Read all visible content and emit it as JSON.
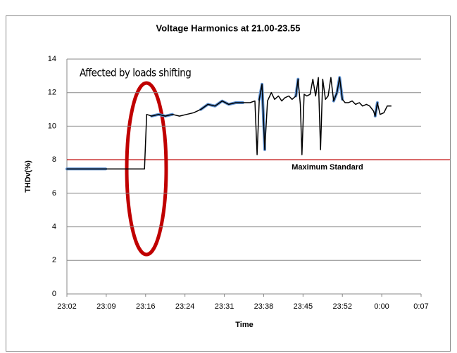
{
  "chart_data": {
    "type": "line",
    "title": "Voltage Harmonics at 21.00-23.55",
    "xlabel": "Time",
    "ylabel": "THDv(%)",
    "annotation": "Affected by loads shifting",
    "annotation_color": "#c00000",
    "reference_line": {
      "value": 8,
      "label": "Maximum Standard",
      "color": "#c00000"
    },
    "xlim": [
      1382.4,
      1447.2
    ],
    "xticks": [
      {
        "value": 1382.4,
        "label": "23:02"
      },
      {
        "value": 1389.6,
        "label": "23:09"
      },
      {
        "value": 1396.8,
        "label": "23:16"
      },
      {
        "value": 1404.0,
        "label": "23:24"
      },
      {
        "value": 1411.2,
        "label": "23:31"
      },
      {
        "value": 1418.4,
        "label": "23:38"
      },
      {
        "value": 1425.6,
        "label": "23:45"
      },
      {
        "value": 1432.8,
        "label": "23:52"
      },
      {
        "value": 1440.0,
        "label": "0:00"
      },
      {
        "value": 1447.2,
        "label": "0:07"
      }
    ],
    "ylim": [
      0,
      14
    ],
    "yticks": [
      0,
      2,
      4,
      6,
      8,
      10,
      12,
      14
    ],
    "grid": true,
    "x": [
      1382.4,
      1389.5,
      1396.6,
      1397.0,
      1397.9,
      1399.2,
      1400.4,
      1401.7,
      1403.0,
      1404.3,
      1405.6,
      1406.9,
      1408.2,
      1409.5,
      1410.8,
      1412.0,
      1413.3,
      1414.6,
      1415.9,
      1416.8,
      1417.2,
      1417.6,
      1418.1,
      1418.6,
      1419.1,
      1419.8,
      1420.4,
      1421.1,
      1421.7,
      1422.3,
      1423.0,
      1423.6,
      1424.3,
      1424.7,
      1425.1,
      1425.4,
      1425.8,
      1426.3,
      1426.9,
      1427.4,
      1427.9,
      1428.4,
      1428.8,
      1429.2,
      1429.7,
      1430.2,
      1430.7,
      1431.2,
      1431.8,
      1432.3,
      1432.8,
      1433.3,
      1433.9,
      1434.6,
      1435.2,
      1435.9,
      1436.5,
      1437.2,
      1437.8,
      1438.5,
      1438.8,
      1439.2,
      1439.7,
      1440.4,
      1441.0,
      1441.7
    ],
    "series": [
      {
        "color": "#5b8fd0",
        "width": 4,
        "values": [
          7.45,
          7.45,
          null,
          null,
          10.6,
          10.7,
          10.6,
          10.7,
          null,
          null,
          null,
          11.0,
          11.3,
          11.2,
          11.5,
          11.3,
          11.4,
          11.4,
          null,
          null,
          null,
          11.6,
          12.5,
          8.6,
          null,
          null,
          null,
          null,
          null,
          null,
          null,
          null,
          11.8,
          12.8,
          null,
          null,
          null,
          null,
          null,
          null,
          null,
          null,
          null,
          null,
          null,
          null,
          null,
          11.5,
          12.0,
          12.9,
          11.6,
          null,
          null,
          null,
          null,
          null,
          null,
          null,
          null,
          null,
          10.6,
          11.4,
          null,
          null,
          null,
          null
        ]
      },
      {
        "color": "#000000",
        "width": 1.5,
        "values": [
          7.45,
          7.45,
          7.45,
          10.7,
          10.6,
          10.7,
          10.6,
          10.7,
          10.6,
          10.7,
          10.8,
          11.0,
          11.3,
          11.2,
          11.5,
          11.3,
          11.4,
          11.4,
          11.4,
          11.5,
          8.3,
          11.6,
          12.5,
          8.6,
          11.5,
          12.0,
          11.6,
          11.8,
          11.5,
          11.7,
          11.8,
          11.6,
          11.8,
          12.8,
          11.3,
          8.3,
          11.9,
          11.8,
          11.9,
          12.8,
          11.8,
          12.9,
          8.6,
          12.8,
          11.6,
          11.8,
          12.9,
          11.5,
          12.0,
          12.9,
          11.6,
          11.4,
          11.4,
          11.5,
          11.3,
          11.4,
          11.2,
          11.3,
          11.2,
          10.9,
          10.6,
          11.4,
          10.7,
          10.8,
          11.2,
          11.2
        ]
      }
    ]
  }
}
